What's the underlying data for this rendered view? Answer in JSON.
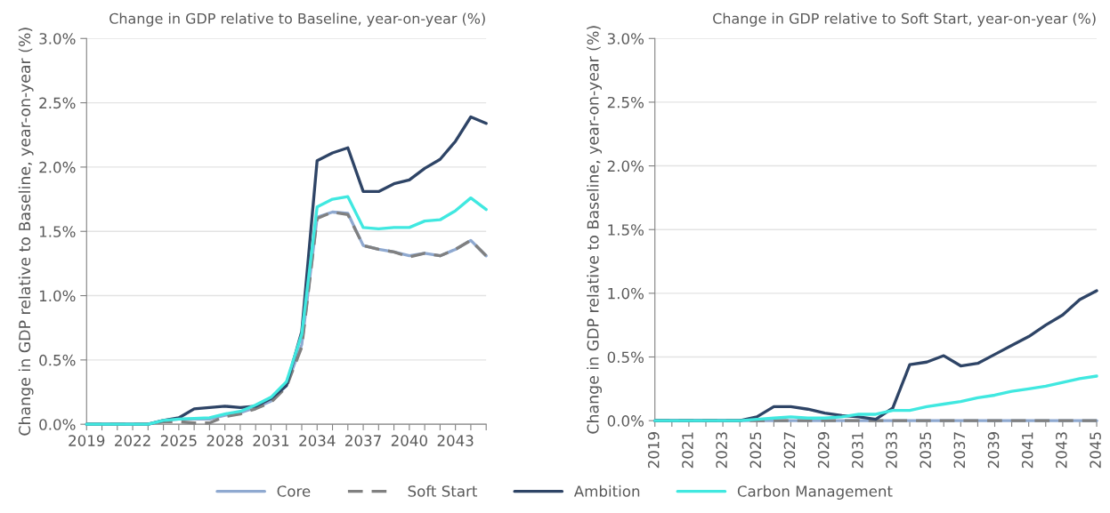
{
  "chart_data": [
    {
      "type": "line",
      "title": "Change in GDP relative to Baseline, year-on-year (%)",
      "ylabel": "Change in GDP relative to Baseline, year-on-year (%)",
      "x": [
        2019,
        2020,
        2021,
        2022,
        2023,
        2024,
        2025,
        2026,
        2027,
        2028,
        2029,
        2030,
        2031,
        2032,
        2033,
        2034,
        2035,
        2036,
        2037,
        2038,
        2039,
        2040,
        2041,
        2042,
        2043,
        2044,
        2045
      ],
      "series": [
        {
          "name": "Core",
          "color": "#8fa9d0",
          "line_style": "solid",
          "values": [
            0,
            0,
            0,
            0,
            0,
            0.03,
            0.04,
            0.04,
            0.04,
            0.07,
            0.09,
            0.13,
            0.18,
            0.3,
            0.62,
            1.61,
            1.65,
            1.64,
            1.39,
            1.36,
            1.34,
            1.31,
            1.33,
            1.31,
            1.36,
            1.43,
            1.31
          ]
        },
        {
          "name": "Soft Start",
          "color": "#808080",
          "line_style": "dashed",
          "values": [
            0,
            0,
            0,
            0,
            0,
            0.02,
            0.02,
            0.01,
            0.01,
            0.06,
            0.08,
            0.12,
            0.17,
            0.29,
            0.6,
            1.6,
            1.65,
            1.63,
            1.39,
            1.36,
            1.34,
            1.3,
            1.33,
            1.31,
            1.36,
            1.43,
            1.31
          ]
        },
        {
          "name": "Ambition",
          "color": "#2e4466",
          "line_style": "solid",
          "values": [
            0,
            0,
            0,
            0,
            0,
            0.03,
            0.05,
            0.12,
            0.13,
            0.14,
            0.13,
            0.14,
            0.2,
            0.3,
            0.72,
            2.05,
            2.11,
            2.15,
            1.81,
            1.81,
            1.87,
            1.9,
            1.99,
            2.06,
            2.2,
            2.39,
            2.34
          ]
        },
        {
          "name": "Carbon Management",
          "color": "#40e8e0",
          "line_style": "solid",
          "values": [
            0,
            0,
            0,
            0,
            0,
            0.03,
            0.04,
            0.045,
            0.05,
            0.08,
            0.1,
            0.15,
            0.21,
            0.33,
            0.7,
            1.69,
            1.75,
            1.77,
            1.53,
            1.52,
            1.53,
            1.53,
            1.58,
            1.59,
            1.66,
            1.76,
            1.67
          ]
        }
      ],
      "xlim": [
        2019,
        2045
      ],
      "xticks": [
        2019,
        {
          "value": 2020,
          "label": null
        },
        {
          "value": 2021,
          "label": null
        },
        2022,
        {
          "value": 2023,
          "label": null
        },
        {
          "value": 2024,
          "label": null
        },
        2025,
        {
          "value": 2026,
          "label": null
        },
        {
          "value": 2027,
          "label": null
        },
        2028,
        {
          "value": 2029,
          "label": null
        },
        {
          "value": 2030,
          "label": null
        },
        2031,
        {
          "value": 2032,
          "label": null
        },
        {
          "value": 2033,
          "label": null
        },
        2034,
        {
          "value": 2035,
          "label": null
        },
        {
          "value": 2036,
          "label": null
        },
        2037,
        {
          "value": 2038,
          "label": null
        },
        {
          "value": 2039,
          "label": null
        },
        2040,
        {
          "value": 2041,
          "label": null
        },
        {
          "value": 2042,
          "label": null
        },
        2043,
        {
          "value": 2044,
          "label": null
        },
        {
          "value": 2045,
          "label": null
        }
      ],
      "ylim": [
        0,
        3.0
      ],
      "yticks": [
        {
          "value": 0,
          "label": "0.0%"
        },
        {
          "value": 0.5,
          "label": "0.5%"
        },
        {
          "value": 1.0,
          "label": "1.0%"
        },
        {
          "value": 1.5,
          "label": "1.5%"
        },
        {
          "value": 2.0,
          "label": "2.0%"
        },
        {
          "value": 2.5,
          "label": "2.5%"
        },
        {
          "value": 3.0,
          "label": "3.0%"
        }
      ],
      "grid": "y",
      "legend": "bottom"
    },
    {
      "type": "line",
      "title": "Change in GDP relative to Soft Start, year-on-year (%)",
      "ylabel": "Change in GDP relative to Baseline, year-on-year (%)",
      "x": [
        2019,
        2020,
        2021,
        2022,
        2023,
        2024,
        2025,
        2026,
        2027,
        2028,
        2029,
        2030,
        2031,
        2032,
        2033,
        2034,
        2035,
        2036,
        2037,
        2038,
        2039,
        2040,
        2041,
        2042,
        2043,
        2044,
        2045
      ],
      "series": [
        {
          "color": "#8fa9d0",
          "line_style": "solid",
          "values": [
            0,
            0,
            0,
            0,
            0,
            0,
            0,
            0,
            0,
            0,
            0,
            0,
            0,
            0,
            0,
            0,
            0,
            0,
            0,
            0,
            0,
            0,
            0,
            0,
            0,
            0,
            0
          ]
        },
        {
          "color": "#808080",
          "line_style": "dashed",
          "values": [
            0,
            0,
            0,
            0,
            0,
            0,
            0,
            0,
            0,
            0,
            0,
            0,
            0,
            0,
            0,
            0,
            0,
            0,
            0,
            0,
            0,
            0,
            0,
            0,
            0,
            0,
            0
          ]
        },
        {
          "color": "#2e4466",
          "line_style": "solid",
          "values": [
            0,
            0,
            0,
            0,
            0,
            0,
            0.03,
            0.11,
            0.11,
            0.09,
            0.06,
            0.04,
            0.03,
            0.01,
            0.1,
            0.44,
            0.46,
            0.51,
            0.43,
            0.45,
            0.52,
            0.59,
            0.66,
            0.75,
            0.83,
            0.95,
            1.02
          ]
        },
        {
          "color": "#40e8e0",
          "line_style": "solid",
          "values": [
            0,
            0,
            0,
            0,
            0,
            0,
            0.01,
            0.02,
            0.03,
            0.02,
            0.02,
            0.03,
            0.05,
            0.05,
            0.08,
            0.08,
            0.11,
            0.13,
            0.15,
            0.18,
            0.2,
            0.23,
            0.25,
            0.27,
            0.3,
            0.33,
            0.35
          ]
        }
      ],
      "xlim": [
        2019,
        2045
      ],
      "xticks": [
        2019,
        {
          "value": 2020,
          "label": null
        },
        2021,
        {
          "value": 2022,
          "label": null
        },
        2023,
        {
          "value": 2024,
          "label": null
        },
        2025,
        {
          "value": 2026,
          "label": null
        },
        2027,
        {
          "value": 2028,
          "label": null
        },
        2029,
        {
          "value": 2030,
          "label": null
        },
        2031,
        {
          "value": 2032,
          "label": null
        },
        2033,
        {
          "value": 2034,
          "label": null
        },
        2035,
        {
          "value": 2036,
          "label": null
        },
        2037,
        {
          "value": 2038,
          "label": null
        },
        2039,
        {
          "value": 2040,
          "label": null
        },
        2041,
        {
          "value": 2042,
          "label": null
        },
        2043,
        {
          "value": 2044,
          "label": null
        },
        2045
      ],
      "ylim": [
        0,
        3.0
      ],
      "yticks": [
        {
          "value": 0,
          "label": "0.0%"
        },
        {
          "value": 0.5,
          "label": "0.5%"
        },
        {
          "value": 1.0,
          "label": "1.0%"
        },
        {
          "value": 1.5,
          "label": "1.5%"
        },
        {
          "value": 2.0,
          "label": "2.0%"
        },
        {
          "value": 2.5,
          "label": "2.5%"
        },
        {
          "value": 3.0,
          "label": "3.0%"
        }
      ],
      "grid": "y"
    }
  ]
}
